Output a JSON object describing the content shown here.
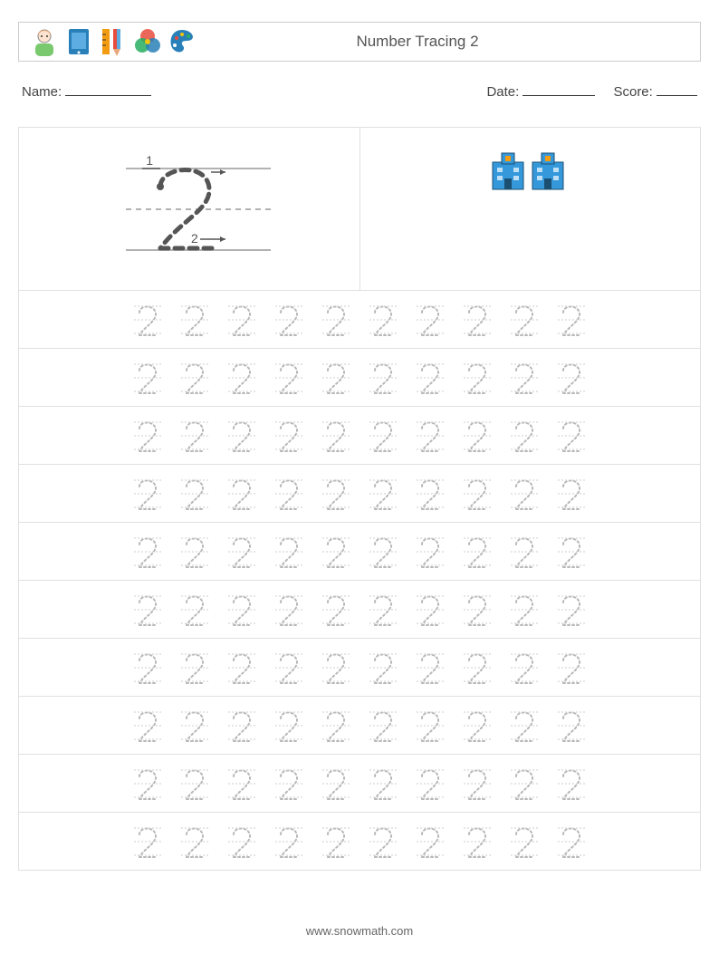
{
  "header": {
    "title": "Number Tracing 2",
    "icon_colors": {
      "person_hair": "#e8a87c",
      "person_shirt": "#7bc96f",
      "tablet_border": "#2980b9",
      "tablet_screen": "#5dade2",
      "ruler": "#f39c12",
      "pencil": "#e74c3c",
      "color_r": "#e74c3c",
      "color_g": "#27ae60",
      "color_b": "#2980b9",
      "color_y": "#f1c40f",
      "palette": "#2980b9"
    }
  },
  "meta": {
    "name_label": "Name:",
    "date_label": "Date:",
    "score_label": "Score:",
    "name_underline_width": 95,
    "date_underline_width": 80,
    "score_underline_width": 45
  },
  "example": {
    "stroke_color": "#555555",
    "guide_color": "#999999",
    "step1_label": "1",
    "step2_label": "2",
    "building_color": "#3498db",
    "building_accent": "#f39c12",
    "building_count": 2
  },
  "tracing": {
    "digit": "2",
    "rows": 10,
    "cols": 10,
    "dotted_color": "#b8b8b8",
    "guide_line_color": "#cccccc"
  },
  "footer": {
    "text": "www.snowmath.com"
  }
}
